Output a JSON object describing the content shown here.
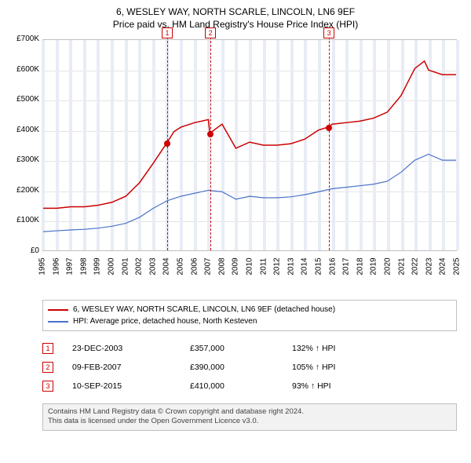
{
  "title_line1": "6, WESLEY WAY, NORTH SCARLE, LINCOLN, LN6 9EF",
  "title_line2": "Price paid vs. HM Land Registry's House Price Index (HPI)",
  "chart": {
    "type": "line",
    "x_years": [
      1995,
      1996,
      1997,
      1998,
      1999,
      2000,
      2001,
      2002,
      2003,
      2004,
      2005,
      2006,
      2007,
      2008,
      2009,
      2010,
      2011,
      2012,
      2013,
      2014,
      2015,
      2016,
      2017,
      2018,
      2019,
      2020,
      2021,
      2022,
      2023,
      2024,
      2025
    ],
    "xlim": [
      1995,
      2025
    ],
    "ylim": [
      0,
      700
    ],
    "ytick_step": 100,
    "ytick_labels": [
      "£0",
      "£100K",
      "£200K",
      "£300K",
      "£400K",
      "£500K",
      "£600K",
      "£700K"
    ],
    "background_color": "#ffffff",
    "grid_color": "#e4e4e4",
    "border_color": "#c0c0c0",
    "band_color": "#e8ecf5",
    "series": [
      {
        "name": "6, WESLEY WAY, NORTH SCARLE, LINCOLN, LN6 9EF (detached house)",
        "color": "#cc0000",
        "line_width": 1.5,
        "x": [
          1995,
          1996,
          1997,
          1998,
          1999,
          2000,
          2001,
          2002,
          2003,
          2003.98,
          2004.5,
          2005,
          2006,
          2007,
          2007.11,
          2008,
          2009,
          2010,
          2011,
          2012,
          2013,
          2014,
          2015,
          2015.69,
          2016,
          2017,
          2018,
          2019,
          2020,
          2021,
          2022,
          2022.7,
          2023,
          2024,
          2025
        ],
        "y": [
          140,
          140,
          145,
          145,
          150,
          160,
          180,
          225,
          290,
          357,
          395,
          410,
          425,
          435,
          390,
          420,
          340,
          360,
          350,
          350,
          355,
          370,
          400,
          410,
          420,
          425,
          430,
          440,
          460,
          515,
          605,
          630,
          600,
          585,
          585
        ]
      },
      {
        "name": "HPI: Average price, detached house, North Kesteven",
        "color": "#4a72c8",
        "line_width": 1.2,
        "x": [
          1995,
          1996,
          1997,
          1998,
          1999,
          2000,
          2001,
          2002,
          2003,
          2004,
          2005,
          2006,
          2007,
          2008,
          2009,
          2010,
          2011,
          2012,
          2013,
          2014,
          2015,
          2016,
          2017,
          2018,
          2019,
          2020,
          2021,
          2022,
          2023,
          2024,
          2025
        ],
        "y": [
          62,
          65,
          68,
          70,
          74,
          80,
          90,
          110,
          140,
          165,
          180,
          190,
          200,
          195,
          170,
          180,
          175,
          175,
          178,
          185,
          195,
          205,
          210,
          215,
          220,
          230,
          260,
          300,
          320,
          300,
          300
        ]
      }
    ],
    "sale_markers": [
      {
        "n": "1",
        "x": 2003.98,
        "y": 357
      },
      {
        "n": "2",
        "x": 2007.11,
        "y": 390
      },
      {
        "n": "3",
        "x": 2015.69,
        "y": 410
      }
    ],
    "marker_color": "#cc0000"
  },
  "legend": {
    "border_color": "#c0c0c0",
    "rows": [
      {
        "color": "#cc0000",
        "label": "6, WESLEY WAY, NORTH SCARLE, LINCOLN, LN6 9EF (detached house)"
      },
      {
        "color": "#4a72c8",
        "label": "HPI: Average price, detached house, North Kesteven"
      }
    ]
  },
  "points_table": [
    {
      "n": "1",
      "date": "23-DEC-2003",
      "price": "£357,000",
      "pct": "132% ↑ HPI"
    },
    {
      "n": "2",
      "date": "09-FEB-2007",
      "price": "£390,000",
      "pct": "105% ↑ HPI"
    },
    {
      "n": "3",
      "date": "10-SEP-2015",
      "price": "£410,000",
      "pct": "93% ↑ HPI"
    }
  ],
  "footer_line1": "Contains HM Land Registry data © Crown copyright and database right 2024.",
  "footer_line2": "This data is licensed under the Open Government Licence v3.0.",
  "fontsize": {
    "title": 12,
    "axis": 10,
    "legend": 10,
    "table": 10.5,
    "footer": 9.5
  }
}
